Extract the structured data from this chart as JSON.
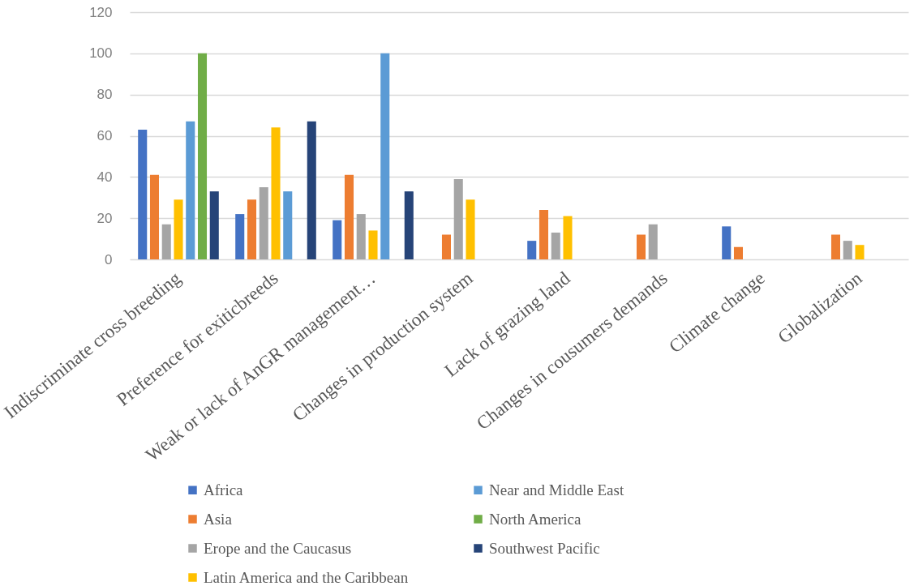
{
  "chart_data": {
    "type": "bar",
    "categories": [
      "Indiscriminate cross breeding",
      "Preference for exiticbreeds",
      "Weak or lack of AnGR management…",
      "Changes in production system",
      "Lack of grazing land",
      "Changes in cousumers demands",
      "Climate change",
      "Globalization"
    ],
    "series": [
      {
        "name": "Africa",
        "color": "#4472c4",
        "values": [
          63,
          22,
          19,
          null,
          9,
          null,
          16,
          null
        ]
      },
      {
        "name": "Asia",
        "color": "#ed7d31",
        "values": [
          41,
          29,
          41,
          12,
          24,
          12,
          6,
          12
        ]
      },
      {
        "name": "Erope and the Caucasus",
        "color": "#a5a5a5",
        "values": [
          17,
          35,
          22,
          39,
          13,
          17,
          null,
          9
        ]
      },
      {
        "name": "Latin America and the Caribbean",
        "color": "#ffc000",
        "values": [
          29,
          64,
          14,
          29,
          21,
          null,
          null,
          7
        ]
      },
      {
        "name": "Near and Middle East",
        "color": "#5b9bd5",
        "values": [
          67,
          33,
          100,
          null,
          null,
          null,
          null,
          null
        ]
      },
      {
        "name": "North America",
        "color": "#70ad47",
        "values": [
          100,
          null,
          null,
          null,
          null,
          null,
          null,
          null
        ]
      },
      {
        "name": "Southwest Pacific",
        "color": "#264478",
        "values": [
          33,
          67,
          33,
          null,
          null,
          null,
          null,
          null
        ]
      }
    ],
    "ylim": [
      0,
      120
    ],
    "yticks": [
      0,
      20,
      40,
      60,
      80,
      100,
      120
    ],
    "grid": "y",
    "legend": "bottom"
  }
}
